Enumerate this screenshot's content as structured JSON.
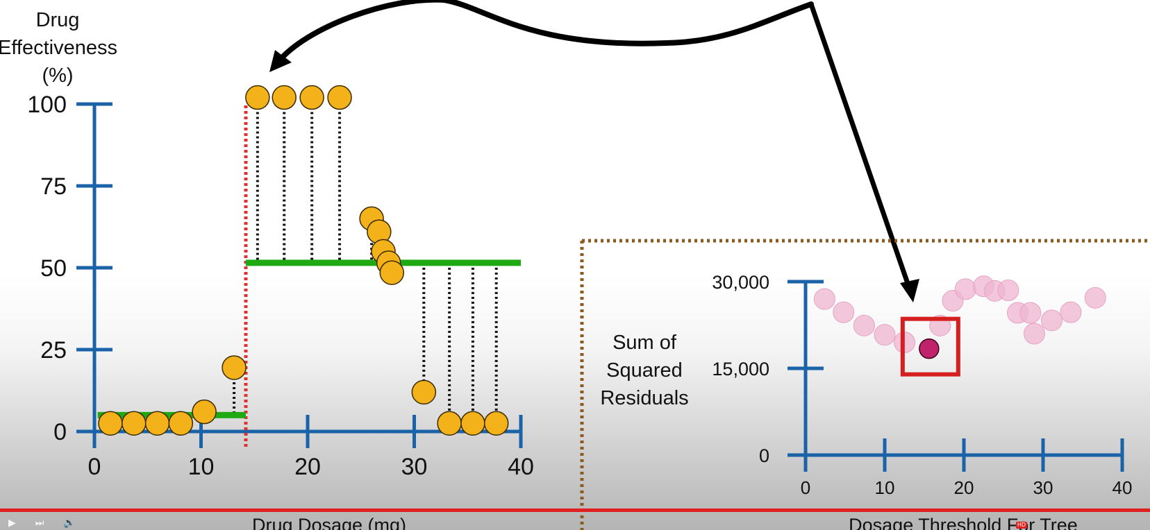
{
  "chart_data": [
    {
      "type": "scatter",
      "title": "",
      "ylabel_lines": [
        "Drug",
        "Effectiveness",
        "(%)"
      ],
      "xlabel": "Drug Dosage (mg)",
      "xlim": [
        0,
        40
      ],
      "ylim": [
        0,
        100
      ],
      "x_ticks": [
        0,
        10,
        20,
        30,
        40
      ],
      "y_ticks": [
        0,
        25,
        50,
        75,
        100
      ],
      "x_tick_labels": [
        "0",
        "10",
        "20",
        "30",
        "40"
      ],
      "y_tick_labels": [
        "0",
        "25",
        "50",
        "75",
        "100"
      ],
      "points": [
        {
          "x": 1.5,
          "y": 2.5
        },
        {
          "x": 3.7,
          "y": 2.5
        },
        {
          "x": 5.9,
          "y": 2.5
        },
        {
          "x": 8.1,
          "y": 2.5
        },
        {
          "x": 10.3,
          "y": 6
        },
        {
          "x": 13.1,
          "y": 19.5
        },
        {
          "x": 15.3,
          "y": 102
        },
        {
          "x": 17.8,
          "y": 102
        },
        {
          "x": 20.4,
          "y": 102
        },
        {
          "x": 23.0,
          "y": 102
        },
        {
          "x": 26.0,
          "y": 65
        },
        {
          "x": 26.7,
          "y": 61
        },
        {
          "x": 27.1,
          "y": 55
        },
        {
          "x": 27.6,
          "y": 51.5
        },
        {
          "x": 27.9,
          "y": 48.5
        },
        {
          "x": 30.9,
          "y": 12
        },
        {
          "x": 33.3,
          "y": 2.5
        },
        {
          "x": 35.5,
          "y": 2.5
        },
        {
          "x": 37.7,
          "y": 2.5
        }
      ],
      "threshold_x": 14.2,
      "left_mean": {
        "x_from": 0.3,
        "x_to": 14.2,
        "y": 5
      },
      "right_mean": {
        "x_from": 14.2,
        "x_to": 40.0,
        "y": 51.5
      },
      "residual_lines": [
        {
          "x": 13.1,
          "y_from": 19.5,
          "y_to": 5
        },
        {
          "x": 15.3,
          "y_from": 102,
          "y_to": 51.5
        },
        {
          "x": 17.8,
          "y_from": 102,
          "y_to": 51.5
        },
        {
          "x": 20.4,
          "y_from": 102,
          "y_to": 51.5
        },
        {
          "x": 23.0,
          "y_from": 102,
          "y_to": 51.5
        },
        {
          "x": 26.0,
          "y_from": 65,
          "y_to": 51.5
        },
        {
          "x": 30.9,
          "y_from": 12,
          "y_to": 51.5
        },
        {
          "x": 33.3,
          "y_from": 2.5,
          "y_to": 51.5
        },
        {
          "x": 35.5,
          "y_from": 2.5,
          "y_to": 51.5
        },
        {
          "x": 37.7,
          "y_from": 2.5,
          "y_to": 51.5
        }
      ],
      "colors": {
        "axis": "#1a63a8",
        "point": "#f3b11a",
        "mean_line": "#1faa13",
        "threshold": "#e03030",
        "residual": "#111111"
      }
    },
    {
      "type": "scatter",
      "title": "",
      "ylabel_lines": [
        "Sum of",
        "Squared",
        "Residuals"
      ],
      "xlabel": "Dosage Threshold For Tree",
      "xlim": [
        0,
        40
      ],
      "ylim": [
        0,
        30000
      ],
      "x_ticks": [
        0,
        10,
        20,
        30,
        40
      ],
      "y_ticks": [
        0,
        15000,
        30000
      ],
      "x_tick_labels": [
        "0",
        "10",
        "20",
        "30",
        "40"
      ],
      "y_tick_labels": [
        "0",
        "15,000",
        "30,000"
      ],
      "faded_points": [
        {
          "x": 2.4,
          "y": 27000
        },
        {
          "x": 4.8,
          "y": 24700
        },
        {
          "x": 7.4,
          "y": 22400
        },
        {
          "x": 10.0,
          "y": 20800
        },
        {
          "x": 12.5,
          "y": 19500
        },
        {
          "x": 17.0,
          "y": 22400
        },
        {
          "x": 18.6,
          "y": 26700
        },
        {
          "x": 20.2,
          "y": 28700
        },
        {
          "x": 22.5,
          "y": 29200
        },
        {
          "x": 23.9,
          "y": 28400
        },
        {
          "x": 25.6,
          "y": 28500
        },
        {
          "x": 26.8,
          "y": 24600
        },
        {
          "x": 28.4,
          "y": 24600
        },
        {
          "x": 28.9,
          "y": 21000
        },
        {
          "x": 31.1,
          "y": 23300
        },
        {
          "x": 33.5,
          "y": 24700
        },
        {
          "x": 36.6,
          "y": 27200
        }
      ],
      "highlighted_point": {
        "x": 15.6,
        "y": 18400
      },
      "colors": {
        "axis": "#1a63a8",
        "faded_point": "#f0b6d0",
        "highlight": "#c0226b",
        "highlight_box": "#d62020",
        "panel_border": "#8a5a20"
      }
    }
  ],
  "player": {
    "progress": 0.5
  }
}
